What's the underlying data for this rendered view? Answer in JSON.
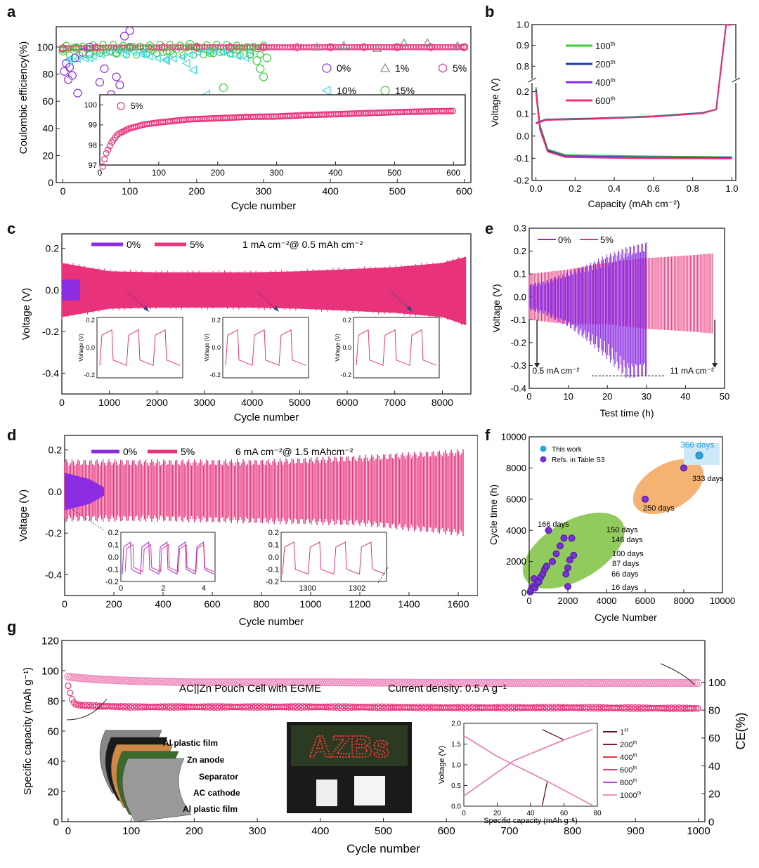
{
  "panel_labels": {
    "a": "a",
    "b": "b",
    "c": "c",
    "d": "d",
    "e": "e",
    "f": "f",
    "g": "g"
  },
  "colors": {
    "pink": "#e8337a",
    "purple": "#8b2be2",
    "green": "#3ccc3c",
    "cyan": "#33d6e6",
    "gray": "#888888",
    "violet": "#7a2fd8",
    "darkred": "#8b1a2b",
    "blue_line": "#1b3b9e",
    "blue_point": "#2aa6e8",
    "green_ellipse": "#7fc241",
    "orange_ellipse": "#f2a65a",
    "light_pink": "#f08fc0"
  },
  "chart_data": [
    {
      "id": "a",
      "type": "scatter",
      "xlabel": "Cycle number",
      "ylabel": "Coulombic efficiency(%)",
      "xlim": [
        -10,
        610
      ],
      "ylim": [
        0,
        115
      ],
      "xticks": [
        "0",
        "100",
        "200",
        "300",
        "400",
        "500",
        "600"
      ],
      "yticks": [
        "0",
        "20",
        "40",
        "60",
        "80",
        "100"
      ],
      "legend": [
        "0%",
        "1%",
        "5%",
        "10%",
        "15%"
      ],
      "series": [
        {
          "name": "0%",
          "marker": "circle",
          "color": "#8b2be2",
          "x": [
            2,
            5,
            8,
            10,
            14,
            18,
            22,
            30,
            40,
            55,
            62,
            72,
            80,
            85,
            92,
            100
          ],
          "y": [
            82,
            88,
            76,
            85,
            79,
            92,
            66,
            96,
            100,
            74,
            84,
            65,
            78,
            72,
            108,
            112
          ]
        },
        {
          "name": "1%",
          "marker": "triangle",
          "color": "#888888",
          "x": [
            380,
            420,
            470,
            510,
            545,
            590
          ],
          "y": [
            100,
            101,
            99,
            103,
            103,
            101
          ]
        },
        {
          "name": "5%",
          "marker": "hexagon",
          "color": "#e8337a",
          "x": [
            0,
            50,
            100,
            150,
            200,
            250,
            300,
            350,
            400,
            450,
            500,
            550,
            600
          ],
          "y": [
            99,
            99.5,
            99.7,
            99.7,
            99.8,
            99.8,
            99.8,
            99.8,
            99.9,
            99.9,
            99.9,
            99.9,
            99.9
          ]
        },
        {
          "name": "10%",
          "marker": "triangle-left",
          "color": "#33d6e6",
          "x": [
            10,
            40,
            90,
            120,
            155,
            185,
            195,
            215,
            250,
            280
          ],
          "y": [
            90,
            92,
            95,
            96,
            90,
            88,
            83,
            65,
            95,
            97
          ]
        },
        {
          "name": "15%",
          "marker": "circle",
          "color": "#3ccc3c",
          "x": [
            0,
            20,
            40,
            60,
            80,
            100,
            130,
            160,
            190,
            220,
            240,
            260,
            280,
            290,
            295,
            300,
            305
          ],
          "y": [
            97,
            99,
            95,
            98,
            96,
            100,
            99,
            97,
            102,
            96,
            70,
            98,
            95,
            90,
            84,
            78,
            92
          ]
        }
      ],
      "inset": {
        "legend": "5%",
        "xlim": [
          0,
          620
        ],
        "ylim": [
          97,
          100.5
        ],
        "xticks": [
          "0",
          "100",
          "200",
          "300",
          "400",
          "500",
          "600"
        ],
        "yticks": [
          "97",
          "98",
          "99",
          "100"
        ],
        "x": [
          5,
          10,
          20,
          30,
          50,
          75,
          100,
          150,
          200,
          250,
          300,
          350,
          400,
          450,
          500,
          550,
          600
        ],
        "y": [
          97.0,
          97.6,
          98.2,
          98.6,
          98.9,
          99.1,
          99.2,
          99.35,
          99.4,
          99.45,
          99.45,
          99.5,
          99.52,
          99.55,
          99.58,
          99.6,
          99.62
        ]
      }
    },
    {
      "id": "b",
      "type": "line",
      "xlabel": "Capacity (mAh cm⁻²)",
      "ylabel": "Voltage (V)",
      "xlim": [
        -0.02,
        1.02
      ],
      "xticks": [
        "0.0",
        "0.2",
        "0.4",
        "0.6",
        "0.8",
        "1.0"
      ],
      "yticks_lower": [
        "-0.2",
        "-0.1",
        "0.0",
        "0.1",
        "0.2"
      ],
      "yticks_upper": [
        "0.8",
        "0.9",
        "1.0"
      ],
      "legend_title_note": "",
      "series": [
        {
          "name": "100",
          "sup": "th",
          "color": "#3ccc3c",
          "charge_x": [
            0,
            0.05,
            0.3,
            0.6,
            0.85,
            0.92,
            0.97,
            1.0
          ],
          "charge_y": [
            0.06,
            0.075,
            0.08,
            0.09,
            0.105,
            0.12,
            0.5,
            1.0
          ],
          "discharge_x": [
            0,
            0.02,
            0.06,
            0.15,
            0.5,
            1.0
          ],
          "discharge_y": [
            0.22,
            0.05,
            -0.06,
            -0.085,
            -0.09,
            -0.095
          ]
        },
        {
          "name": "200",
          "sup": "th",
          "color": "#1b3b9e",
          "charge_x": [
            0,
            0.05,
            0.3,
            0.6,
            0.85,
            0.92,
            0.97,
            1.0
          ],
          "charge_y": [
            0.058,
            0.074,
            0.079,
            0.088,
            0.104,
            0.12,
            0.5,
            1.0
          ],
          "discharge_x": [
            0,
            0.02,
            0.06,
            0.15,
            0.5,
            1.0
          ],
          "discharge_y": [
            0.21,
            0.04,
            -0.065,
            -0.09,
            -0.095,
            -0.097
          ]
        },
        {
          "name": "400",
          "sup": "th",
          "color": "#8b2be2",
          "charge_x": [
            0,
            0.05,
            0.3,
            0.6,
            0.85,
            0.92,
            0.97,
            1.0
          ],
          "charge_y": [
            0.057,
            0.073,
            0.078,
            0.088,
            0.103,
            0.12,
            0.5,
            1.0
          ],
          "discharge_x": [
            0,
            0.02,
            0.06,
            0.15,
            0.5,
            1.0
          ],
          "discharge_y": [
            0.2,
            0.035,
            -0.07,
            -0.092,
            -0.097,
            -0.1
          ]
        },
        {
          "name": "600",
          "sup": "th",
          "color": "#e8337a",
          "charge_x": [
            0,
            0.05,
            0.3,
            0.6,
            0.85,
            0.92,
            0.97,
            1.0
          ],
          "charge_y": [
            0.056,
            0.072,
            0.077,
            0.087,
            0.102,
            0.12,
            0.5,
            1.0
          ],
          "discharge_x": [
            0,
            0.02,
            0.06,
            0.15,
            0.5,
            1.0
          ],
          "discharge_y": [
            0.2,
            0.03,
            -0.07,
            -0.095,
            -0.1,
            -0.102
          ]
        }
      ]
    },
    {
      "id": "c",
      "type": "line",
      "xlabel": "Cycle number",
      "ylabel": "Voltage (V)",
      "xlim": [
        0,
        8600
      ],
      "ylim": [
        -0.5,
        0.27
      ],
      "xticks": [
        "0",
        "1000",
        "2000",
        "3000",
        "4000",
        "5000",
        "6000",
        "7000",
        "8000"
      ],
      "yticks": [
        "-0.4",
        "-0.2",
        "0.0",
        "0.2"
      ],
      "annotation": "1 mA cm⁻²@ 0.5 mAh cm⁻²",
      "series": [
        {
          "name": "0%",
          "color": "#8b2be2",
          "x": [
            0,
            380
          ],
          "upper": [
            0.05,
            0.05
          ],
          "lower": [
            -0.05,
            -0.05
          ]
        },
        {
          "name": "5%",
          "color": "#e8337a",
          "x": [
            0,
            1000,
            2000,
            3000,
            4000,
            5000,
            6000,
            7000,
            8000,
            8500
          ],
          "upper": [
            0.13,
            0.09,
            0.085,
            0.085,
            0.085,
            0.09,
            0.1,
            0.11,
            0.13,
            0.16
          ],
          "lower": [
            -0.13,
            -0.09,
            -0.085,
            -0.085,
            -0.085,
            -0.09,
            -0.1,
            -0.11,
            -0.13,
            -0.17
          ]
        }
      ],
      "insets": [
        {
          "yticks": [
            "0.2",
            "0.0",
            "-0.2"
          ],
          "ylabel": "Voltage (V)"
        },
        {
          "yticks": [
            "0.2",
            "0.0",
            "-0.2"
          ],
          "ylabel": "Voltage (V)"
        },
        {
          "yticks": [
            "0.2",
            "0.0",
            "-0.2"
          ],
          "ylabel": "Voltage (V)"
        }
      ]
    },
    {
      "id": "d",
      "type": "line",
      "xlabel": "Cycle number",
      "ylabel": "Voltage (V)",
      "xlim": [
        0,
        1680
      ],
      "ylim": [
        -0.5,
        0.27
      ],
      "xticks": [
        "0",
        "200",
        "400",
        "600",
        "800",
        "1000",
        "1200",
        "1400",
        "1600"
      ],
      "yticks": [
        "-0.4",
        "-0.2",
        "0.0",
        "0.2"
      ],
      "annotation": "6 mA cm⁻²@ 1.5 mAhcm⁻²",
      "series": [
        {
          "name": "0%",
          "color": "#8b2be2",
          "x": [
            0,
            100,
            160
          ],
          "upper": [
            0.09,
            0.06,
            0.02
          ],
          "lower": [
            -0.09,
            -0.06,
            -0.02
          ]
        },
        {
          "name": "5%",
          "color": "#e8337a",
          "x": [
            0,
            400,
            800,
            1200,
            1620
          ],
          "upper": [
            0.14,
            0.14,
            0.14,
            0.16,
            0.19
          ],
          "lower": [
            -0.13,
            -0.13,
            -0.14,
            -0.15,
            -0.2
          ]
        }
      ],
      "insets": [
        {
          "xticks": [
            "0",
            "2",
            "4"
          ],
          "yticks": [
            "0.2",
            "0.1",
            "0.0",
            "-0.1",
            "-0.2"
          ]
        },
        {
          "xticks": [
            "1300",
            "1302"
          ],
          "yticks": [
            "0.2",
            "0.1",
            "0.0",
            "-0.1",
            "-0.2"
          ]
        }
      ]
    },
    {
      "id": "e",
      "type": "line",
      "xlabel": "Test time (h)",
      "ylabel": "Voltage (V)",
      "xlim": [
        0,
        50
      ],
      "ylim": [
        -0.4,
        0.3
      ],
      "xticks": [
        "0",
        "10",
        "20",
        "30",
        "40",
        "50"
      ],
      "yticks": [
        "-0.4",
        "-0.3",
        "-0.2",
        "-0.1",
        "0.0",
        "0.1",
        "0.2",
        "0.3"
      ],
      "annotation_left": "0.5 mA cm⁻²",
      "annotation_right": "11 mA cm⁻²",
      "series": [
        {
          "name": "0%",
          "color": "#8b2be2",
          "x": [
            0,
            5,
            10,
            15,
            20,
            25,
            30
          ],
          "upper": [
            0.05,
            0.07,
            0.1,
            0.13,
            0.17,
            0.2,
            0.22
          ],
          "lower": [
            -0.05,
            -0.08,
            -0.12,
            -0.18,
            -0.25,
            -0.33,
            -0.32
          ]
        },
        {
          "name": "5%",
          "color": "#e8337a",
          "x": [
            0,
            10,
            20,
            30,
            40,
            47
          ],
          "upper": [
            0.1,
            0.12,
            0.15,
            0.17,
            0.18,
            0.19
          ],
          "lower": [
            -0.1,
            -0.12,
            -0.12,
            -0.14,
            -0.15,
            -0.16
          ]
        }
      ]
    },
    {
      "id": "f",
      "type": "scatter",
      "xlabel": "Cycle Number",
      "ylabel": "Cycle time (h)",
      "xlim": [
        0,
        10000
      ],
      "ylim": [
        0,
        10000
      ],
      "xticks": [
        "0",
        "2000",
        "4000",
        "6000",
        "8000",
        "10000"
      ],
      "yticks": [
        "0",
        "2000",
        "4000",
        "6000",
        "8000",
        "10000"
      ],
      "legend": [
        "This work",
        "Refs. in Table S3"
      ],
      "this_work": {
        "x": [
          8800
        ],
        "y": [
          8800
        ],
        "label": "366 days"
      },
      "refs": {
        "x": [
          50,
          100,
          200,
          250,
          300,
          400,
          500,
          600,
          700,
          800,
          900,
          1000,
          1200,
          1400,
          1600,
          1800,
          1900,
          2000,
          2000,
          2100,
          2200,
          2300,
          6000,
          8000
        ],
        "y": [
          50,
          200,
          400,
          900,
          300,
          600,
          700,
          1000,
          1200,
          1500,
          1700,
          4000,
          2000,
          2500,
          3000,
          3500,
          1200,
          400,
          1600,
          2100,
          3500,
          2400,
          6000,
          8000
        ]
      },
      "labels": [
        "166 days",
        "150 days",
        "146 days",
        "100 days",
        "87 days",
        "66 days",
        "16 days",
        "250 days",
        "333 days"
      ]
    },
    {
      "id": "g",
      "type": "scatter",
      "xlabel": "Cycle number",
      "ylabel": "Specific capacity (mAh g⁻¹)",
      "y2label": "CE(%)",
      "xlim": [
        -10,
        1010
      ],
      "ylim": [
        0,
        120
      ],
      "y2lim": [
        0,
        110
      ],
      "xticks": [
        "0",
        "100",
        "200",
        "300",
        "400",
        "500",
        "600",
        "700",
        "800",
        "900",
        "1000"
      ],
      "yticks": [
        "0",
        "20",
        "40",
        "60",
        "80",
        "100",
        "120"
      ],
      "y2ticks": [
        "0",
        "20",
        "40",
        "60",
        "80",
        "100"
      ],
      "annotation": "AC||Zn Pouch Cell with EGME",
      "annotation2": "Current density: 0.5 A g⁻¹",
      "series": [
        {
          "name": "Specific capacity",
          "color": "#e8337a",
          "x": [
            0,
            5,
            10,
            20,
            50,
            100,
            200,
            400,
            600,
            800,
            1000
          ],
          "y": [
            90,
            82,
            78,
            77,
            76.5,
            76,
            76,
            76,
            75.5,
            75.5,
            75
          ]
        },
        {
          "name": "CE",
          "color": "#f08fc0",
          "x": [
            0,
            20,
            50,
            100,
            200,
            400,
            600,
            800,
            1000
          ],
          "y": [
            104,
            103,
            102,
            101,
            100,
            100,
            99.5,
            99.5,
            99.5
          ]
        }
      ],
      "schematic_labels": [
        "Al plastic film",
        "Zn anode",
        "Separator",
        "AC cathode",
        "Al plastic film"
      ],
      "photo_text": "AZBs",
      "inset": {
        "xlabel": "Specific capacity (mAh g⁻¹)",
        "ylabel": "Voltage (V)",
        "xlim": [
          0,
          80
        ],
        "ylim": [
          0,
          2.0
        ],
        "xticks": [
          "0",
          "20",
          "40",
          "60",
          "80"
        ],
        "yticks": [
          "0.0",
          "0.5",
          "1.0",
          "1.5",
          "2.0"
        ],
        "legend": [
          {
            "n": "1",
            "sup": "st",
            "color": "#5a0e1e"
          },
          {
            "n": "200",
            "sup": "th",
            "color": "#8b1a2b"
          },
          {
            "n": "400",
            "sup": "th",
            "color": "#e8333a"
          },
          {
            "n": "600",
            "sup": "th",
            "color": "#e8337a"
          },
          {
            "n": "800",
            "sup": "th",
            "color": "#c040e0"
          },
          {
            "n": "1000",
            "sup": "th",
            "color": "#f08fc0"
          }
        ]
      }
    }
  ]
}
